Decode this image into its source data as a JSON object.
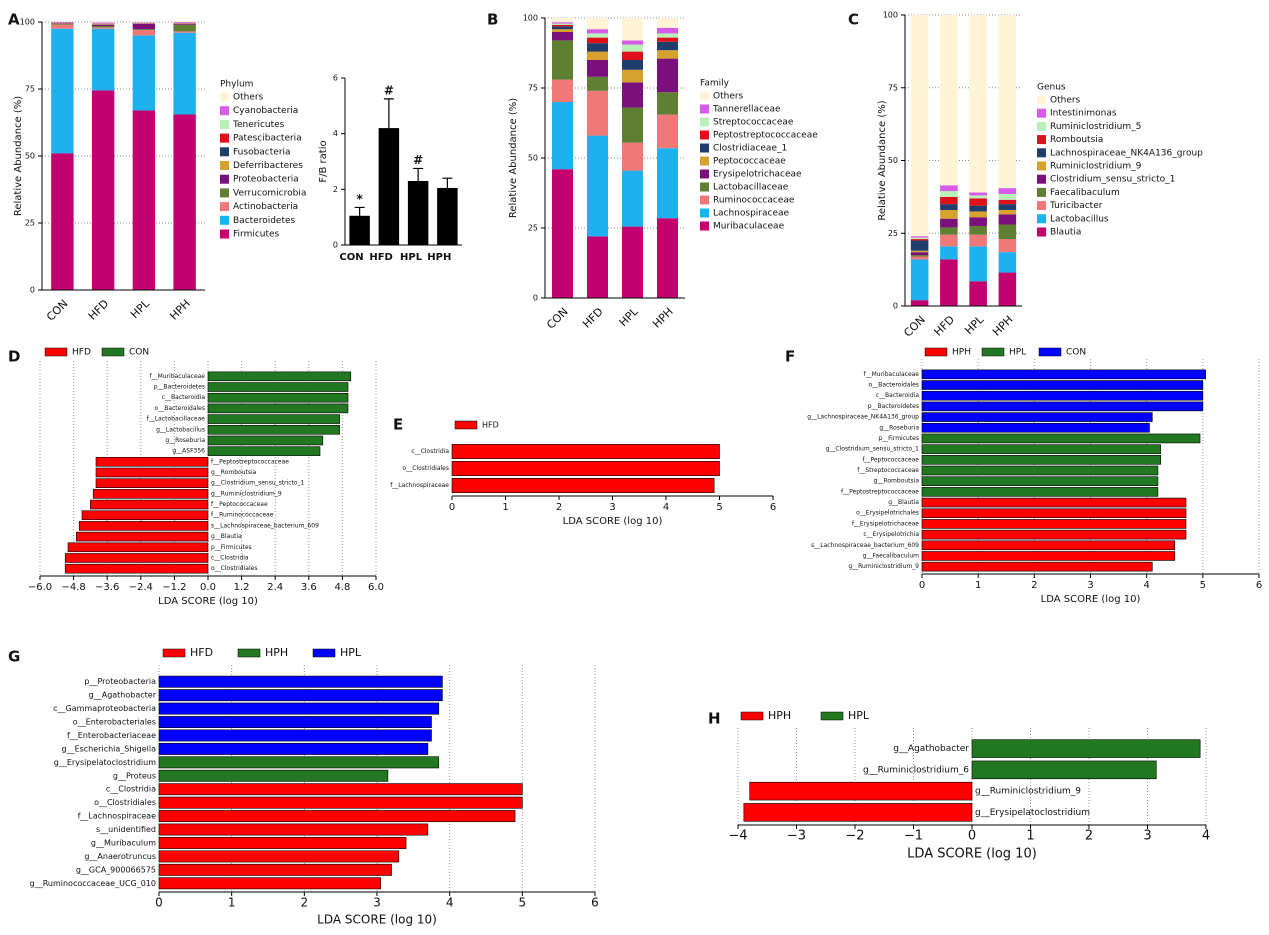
{
  "chart_data": [
    {
      "type": "stacked",
      "panel": "A",
      "ylabel": "Relative Abundance (%)",
      "legend_title": "Phylum",
      "categories": [
        "CON",
        "HFD",
        "HPL",
        "HPH"
      ],
      "ylim": [
        0,
        100
      ],
      "yticks": [
        0,
        25,
        50,
        75,
        100
      ],
      "series": [
        {
          "name": "Firmicutes",
          "color": "#c4006e",
          "values": [
            51,
            74.5,
            67,
            65.5
          ]
        },
        {
          "name": "Bacteroidetes",
          "color": "#1fb0f0",
          "values": [
            46.5,
            23,
            28,
            30.5
          ]
        },
        {
          "name": "Actinobacteria",
          "color": "#f07878",
          "values": [
            1.5,
            0.5,
            2,
            0.5
          ]
        },
        {
          "name": "Verrucomicrobia",
          "color": "#5f7f32",
          "values": [
            0.3,
            0.5,
            0.3,
            2.5
          ]
        },
        {
          "name": "Proteobacteria",
          "color": "#7b0f7b",
          "values": [
            0.2,
            0.5,
            2,
            0.3
          ]
        },
        {
          "name": "Deferribacteres",
          "color": "#d6a12c",
          "values": [
            0.1,
            0.2,
            0.1,
            0.1
          ]
        },
        {
          "name": "Fusobacteria",
          "color": "#1f3e6e",
          "values": [
            0.1,
            0.1,
            0.1,
            0.1
          ]
        },
        {
          "name": "Patescibacteria",
          "color": "#e0101a",
          "values": [
            0.1,
            0.1,
            0.1,
            0.1
          ]
        },
        {
          "name": "Tenericutes",
          "color": "#b8f0b8",
          "values": [
            0.1,
            0.1,
            0.1,
            0.1
          ]
        },
        {
          "name": "Cyanobacteria",
          "color": "#d85ae8",
          "values": [
            0.1,
            0.3,
            0.2,
            0.3
          ]
        },
        {
          "name": "Others",
          "color": "#fff5d6",
          "values": [
            0,
            0.2,
            0.1,
            0.5
          ]
        }
      ]
    },
    {
      "type": "bar",
      "ylabel": "F/B ratio",
      "categories": [
        "CON",
        "HFD",
        "HPL",
        "HPH"
      ],
      "values": [
        1.05,
        4.2,
        2.3,
        2.05
      ],
      "errors": [
        0.3,
        1.05,
        0.45,
        0.35
      ],
      "annotations": [
        "*",
        "#",
        "#"
      ],
      "color": "#000000",
      "ylim": [
        0,
        6
      ],
      "yticks": [
        0,
        2,
        4,
        6
      ]
    },
    {
      "type": "stacked",
      "panel": "B",
      "ylabel": "Relative Abundance (%)",
      "legend_title": "Family",
      "categories": [
        "CON",
        "HFD",
        "HPL",
        "HPH"
      ],
      "ylim": [
        0,
        100
      ],
      "yticks": [
        0,
        25,
        50,
        75,
        100
      ],
      "series": [
        {
          "name": "Muribaculaceae",
          "color": "#c4006e",
          "values": [
            46,
            22,
            25.5,
            28.5
          ]
        },
        {
          "name": "Lachnospiraceae",
          "color": "#1fb0f0",
          "values": [
            24,
            36,
            20,
            25
          ]
        },
        {
          "name": "Ruminococcaceae",
          "color": "#f07878",
          "values": [
            8,
            16,
            10,
            12
          ]
        },
        {
          "name": "Lactobacillaceae",
          "color": "#5f7f32",
          "values": [
            14,
            5,
            12.5,
            8
          ]
        },
        {
          "name": "Erysipelotrichaceae",
          "color": "#7b0f7b",
          "values": [
            3,
            6,
            9,
            12
          ]
        },
        {
          "name": "Peptococcaceae",
          "color": "#d6a12c",
          "values": [
            1,
            3,
            4.5,
            3
          ]
        },
        {
          "name": "Clostridiaceae_1",
          "color": "#1f3e6e",
          "values": [
            1,
            3,
            3.5,
            3
          ]
        },
        {
          "name": "Peptostreptococcaceae",
          "color": "#e0101a",
          "values": [
            0.5,
            2,
            3,
            1.5
          ]
        },
        {
          "name": "Streptococcaceae",
          "color": "#b8f0b8",
          "values": [
            0.5,
            1.5,
            2.5,
            1.5
          ]
        },
        {
          "name": "Tannerellaceae",
          "color": "#d85ae8",
          "values": [
            0.5,
            1.5,
            1.5,
            2
          ]
        },
        {
          "name": "Others",
          "color": "#fff5d6",
          "values": [
            1.5,
            4,
            8,
            3.5
          ]
        }
      ]
    },
    {
      "type": "stacked",
      "panel": "C",
      "ylabel": "Relative Abundance (%)",
      "legend_title": "Genus",
      "categories": [
        "CON",
        "HFD",
        "HPL",
        "HPH"
      ],
      "ylim": [
        0,
        100
      ],
      "yticks": [
        0,
        25,
        50,
        75,
        100
      ],
      "series": [
        {
          "name": "Blautia",
          "color": "#c4006e",
          "values": [
            2,
            16,
            8.5,
            11.5
          ]
        },
        {
          "name": "Lactobacillus",
          "color": "#1fb0f0",
          "values": [
            14,
            4.5,
            12,
            7
          ]
        },
        {
          "name": "Turicibacter",
          "color": "#f07878",
          "values": [
            1,
            4,
            4,
            4.5
          ]
        },
        {
          "name": "Faecalibaculum",
          "color": "#5f7f32",
          "values": [
            0.5,
            2.5,
            3,
            5
          ]
        },
        {
          "name": "Clostridium_sensu_stricto_1",
          "color": "#7b0f7b",
          "values": [
            1,
            3,
            3,
            3.5
          ]
        },
        {
          "name": "Ruminiclostridium_9",
          "color": "#d6a12c",
          "values": [
            0.5,
            3,
            2,
            1.5
          ]
        },
        {
          "name": "Lachnospiraceae_NK4A136_group",
          "color": "#1f3e6e",
          "values": [
            3.5,
            2,
            2,
            2
          ]
        },
        {
          "name": "Romboutsia",
          "color": "#e0101a",
          "values": [
            0.5,
            2.5,
            2.5,
            1.5
          ]
        },
        {
          "name": "Ruminiclostridium_5",
          "color": "#b8f0b8",
          "values": [
            0.5,
            2,
            1,
            2
          ]
        },
        {
          "name": "Intestinimonas",
          "color": "#d85ae8",
          "values": [
            0.5,
            2,
            1,
            2
          ]
        },
        {
          "name": "Others",
          "color": "#fff5d6",
          "values": [
            76,
            58.5,
            61,
            59.5
          ]
        }
      ]
    },
    {
      "type": "hbar",
      "panel": "D",
      "xlabel": "LDA SCORE (log 10)",
      "grid": true,
      "xlim": [
        -6,
        6
      ],
      "xticks": [
        {
          "value": -6,
          "label": "−6.0"
        },
        {
          "value": -4.8,
          "label": "−4.8"
        },
        {
          "value": -3.6,
          "label": "−3.6"
        },
        {
          "value": -2.4,
          "label": "−2.4"
        },
        {
          "value": -1.2,
          "label": "−1.2"
        },
        {
          "value": 0,
          "label": "0.0"
        },
        1.2,
        2.4,
        3.6,
        4.8,
        {
          "value": 6,
          "label": "6.0"
        }
      ],
      "categories": [
        "f__Muribaculaceae",
        "p__Bacteroidetes",
        "c__Bacteroidia",
        "o__Bacteroidales",
        "f__Lactobacillaceae",
        "g__Lactobacillus",
        "g__Roseburia",
        "g__ASF356",
        "f__Peptostreptococcaceae",
        "g__Romboutsia",
        "g__Clostridium_sensu_stricto_1",
        "g__Ruminiclostridium_9",
        "f__Peptococcaceae",
        "f__Ruminococcaceae",
        "s__Lachnospiraceae_bacterium_609",
        "g__Blautia",
        "p__Firmicutes",
        "c__Clostridia",
        "o__Clostridiales"
      ],
      "series": [
        {
          "name": "HFD",
          "color": "#ff0000",
          "values": [
            null,
            null,
            null,
            null,
            null,
            null,
            null,
            null,
            -4.0,
            -4.0,
            -4.0,
            -4.1,
            -4.2,
            -4.5,
            -4.6,
            -4.7,
            -5.0,
            -5.1,
            -5.1
          ]
        },
        {
          "name": "CON",
          "color": "#217821",
          "values": [
            5.1,
            5.0,
            5.0,
            5.0,
            4.7,
            4.7,
            4.1,
            4.0,
            null,
            null,
            null,
            null,
            null,
            null,
            null,
            null,
            null,
            null,
            null
          ]
        }
      ]
    },
    {
      "type": "hbar",
      "panel": "E",
      "xlabel": "LDA SCORE (log 10)",
      "grid": false,
      "xlim": [
        0,
        6
      ],
      "xticks": [
        0,
        1,
        2,
        3,
        4,
        5,
        6
      ],
      "categories": [
        "c__Clostridia",
        "o__Clostridiales",
        "f__Lachnospiraceae"
      ],
      "series": [
        {
          "name": "HFD",
          "color": "#ff0000",
          "values": [
            5.0,
            5.0,
            4.9
          ]
        }
      ]
    },
    {
      "type": "hbar",
      "panel": "F",
      "xlabel": "LDA SCORE (log 10)",
      "grid": true,
      "xlim": [
        0,
        6
      ],
      "xticks": [
        0,
        1,
        2,
        3,
        4,
        5,
        6
      ],
      "categories": [
        "f__Muribaculaceae",
        "o__Bacteroidales",
        "c__Bacteroidia",
        "p__Bacteroidetes",
        "g__Lachnospiraceae_NK4A136_group",
        "g__Roseburia",
        "p__Firmicutes",
        "g__Clostridium_sensu_stricto_1",
        "f__Peptococcaceae",
        "f__Streptococcaceae",
        "g__Romboutsia",
        "f__Peptostreptococcaceae",
        "g__Blautia",
        "o__Erysipelotrichales",
        "f__Erysipelotrichaceae",
        "c__Erysipelotrichia",
        "s__Lachnospiraceae_bacterium_609",
        "g__Faecalibaculum",
        "g__Ruminiclostridium_9"
      ],
      "series": [
        {
          "name": "HPH",
          "color": "#ff0000",
          "values": [
            null,
            null,
            null,
            null,
            null,
            null,
            null,
            null,
            null,
            null,
            null,
            null,
            4.7,
            4.7,
            4.7,
            4.7,
            4.5,
            4.5,
            4.1
          ]
        },
        {
          "name": "HPL",
          "color": "#217821",
          "values": [
            null,
            null,
            null,
            null,
            null,
            null,
            4.95,
            4.25,
            4.25,
            4.2,
            4.2,
            4.2,
            null,
            null,
            null,
            null,
            null,
            null,
            null
          ]
        },
        {
          "name": "CON",
          "color": "#0000ff",
          "values": [
            5.05,
            5.0,
            5.0,
            5.0,
            4.1,
            4.05,
            null,
            null,
            null,
            null,
            null,
            null,
            null,
            null,
            null,
            null,
            null,
            null,
            null
          ]
        }
      ]
    },
    {
      "type": "hbar",
      "panel": "G",
      "xlabel": "LDA SCORE (log 10)",
      "grid": true,
      "xlim": [
        0,
        6
      ],
      "xticks": [
        0,
        1,
        2,
        3,
        4,
        5,
        6
      ],
      "categories": [
        "p__Proteobacteria",
        "g__Agathobacter",
        "c__Gammaproteobacteria",
        "o__Enterobacteriales",
        "f__Enterobacteriaceae",
        "g__Escherichia_Shigella",
        "g__Erysipelatoclostridium",
        "g__Proteus",
        "c__Clostridia",
        "o__Clostridiales",
        "f__Lachnospiraceae",
        "s__unidentified",
        "g__Muribaculum",
        "g__Anaerotruncus",
        "g__GCA_900066575",
        "g__Ruminococcaceae_UCG_010"
      ],
      "series": [
        {
          "name": "HFD",
          "color": "#ff0000",
          "values": [
            null,
            null,
            null,
            null,
            null,
            null,
            null,
            null,
            5.0,
            5.0,
            4.9,
            3.7,
            3.4,
            3.3,
            3.2,
            3.05
          ]
        },
        {
          "name": "HPH",
          "color": "#217821",
          "values": [
            null,
            null,
            null,
            null,
            null,
            null,
            3.85,
            3.15,
            null,
            null,
            null,
            null,
            null,
            null,
            null,
            null
          ]
        },
        {
          "name": "HPL",
          "color": "#0000ff",
          "values": [
            3.9,
            3.9,
            3.85,
            3.75,
            3.75,
            3.7,
            null,
            null,
            null,
            null,
            null,
            null,
            null,
            null,
            null,
            null
          ]
        }
      ]
    },
    {
      "type": "hbar",
      "panel": "H",
      "xlabel": "LDA SCORE (log 10)",
      "grid": true,
      "xlim": [
        -4,
        4
      ],
      "xticks": [
        {
          "value": -4,
          "label": "−4"
        },
        {
          "value": -3,
          "label": "−3"
        },
        {
          "value": -2,
          "label": "−2"
        },
        {
          "value": -1,
          "label": "−1"
        },
        0,
        1,
        2,
        3,
        4
      ],
      "categories": [
        "g__Agathobacter",
        "g__Ruminiclostridium_6",
        "g__Ruminiclostridium_9",
        "g__Erysipelatoclostridium"
      ],
      "series": [
        {
          "name": "HPH",
          "color": "#ff0000",
          "values": [
            null,
            null,
            -3.8,
            -3.9
          ]
        },
        {
          "name": "HPL",
          "color": "#217821",
          "values": [
            3.9,
            3.15,
            null,
            null
          ]
        }
      ]
    }
  ]
}
